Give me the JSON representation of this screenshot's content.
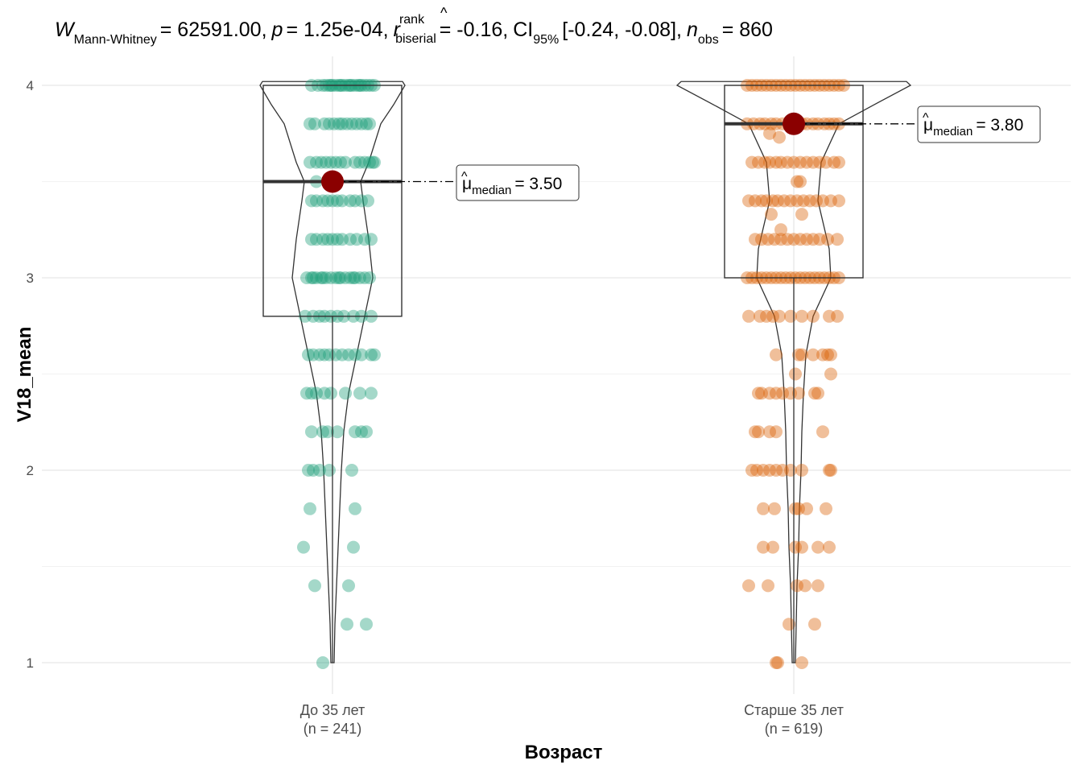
{
  "title": {
    "w_symbol": "W",
    "w_sub": "Mann-Whitney",
    "w_value": "= 62591.00,",
    "p_symbol": "p",
    "p_value": "= 1.25e-04,",
    "r_symbol": "r",
    "r_sup": "rank",
    "r_sub": "biserial",
    "r_value": "= -0.16,",
    "ci_symbol": "CI",
    "ci_sub": "95%",
    "ci_value": "[-0.24, -0.08],",
    "n_symbol": "n",
    "n_sub": "obs",
    "n_value": "= 860"
  },
  "colors": {
    "group1": "#1B9E77",
    "group2": "#D95F02",
    "median_point": "#8B0000",
    "grid": "#ebebeb"
  },
  "chart_data": {
    "type": "violin-box-scatter",
    "xlabel": "Возраст",
    "ylabel": "V18_mean",
    "ylim": [
      0.92,
      4.2
    ],
    "y_ticks": [
      1,
      2,
      3,
      4
    ],
    "categories": [
      "До 35 лет",
      "Старше 35 лет"
    ],
    "n_labels": [
      "(n = 241)",
      "(n = 619)"
    ],
    "groups": [
      {
        "name": "До 35 лет",
        "n": 241,
        "median": 3.5,
        "q1": 2.8,
        "q3": 4.0,
        "whisker_low": 1.0,
        "whisker_high": 4.0,
        "median_label": "= 3.50",
        "points": [
          [
            4.0,
            -26
          ],
          [
            4.0,
            -18
          ],
          [
            4.0,
            -12
          ],
          [
            4.0,
            -8
          ],
          [
            4.0,
            -4
          ],
          [
            4.0,
            0
          ],
          [
            4.0,
            4
          ],
          [
            4.0,
            8
          ],
          [
            4.0,
            12
          ],
          [
            4.0,
            16
          ],
          [
            4.0,
            20
          ],
          [
            4.0,
            24
          ],
          [
            4.0,
            28
          ],
          [
            4.0,
            32
          ],
          [
            4.0,
            36
          ],
          [
            4.0,
            40
          ],
          [
            4.0,
            44
          ],
          [
            4.0,
            48
          ],
          [
            4.0,
            52
          ],
          [
            4.0,
            -2
          ],
          [
            4.0,
            10
          ],
          [
            4.0,
            22
          ],
          [
            4.0,
            34
          ],
          [
            3.8,
            -28
          ],
          [
            3.8,
            -22
          ],
          [
            3.8,
            -10
          ],
          [
            3.8,
            -4
          ],
          [
            3.8,
            2
          ],
          [
            3.8,
            8
          ],
          [
            3.8,
            12
          ],
          [
            3.8,
            18
          ],
          [
            3.8,
            24
          ],
          [
            3.8,
            30
          ],
          [
            3.8,
            36
          ],
          [
            3.8,
            42
          ],
          [
            3.8,
            46
          ],
          [
            3.6,
            -28
          ],
          [
            3.6,
            -20
          ],
          [
            3.6,
            -14
          ],
          [
            3.6,
            -8
          ],
          [
            3.6,
            -2
          ],
          [
            3.6,
            4
          ],
          [
            3.6,
            10
          ],
          [
            3.6,
            16
          ],
          [
            3.6,
            28
          ],
          [
            3.6,
            34
          ],
          [
            3.6,
            40
          ],
          [
            3.6,
            46
          ],
          [
            3.6,
            50
          ],
          [
            3.6,
            52
          ],
          [
            3.5,
            -20
          ],
          [
            3.4,
            -26
          ],
          [
            3.4,
            -20
          ],
          [
            3.4,
            -12
          ],
          [
            3.4,
            -6
          ],
          [
            3.4,
            0
          ],
          [
            3.4,
            6
          ],
          [
            3.4,
            12
          ],
          [
            3.4,
            22
          ],
          [
            3.4,
            28
          ],
          [
            3.4,
            36
          ],
          [
            3.4,
            44
          ],
          [
            3.2,
            -26
          ],
          [
            3.2,
            -20
          ],
          [
            3.2,
            -12
          ],
          [
            3.2,
            -6
          ],
          [
            3.2,
            0
          ],
          [
            3.2,
            6
          ],
          [
            3.2,
            12
          ],
          [
            3.2,
            22
          ],
          [
            3.2,
            30
          ],
          [
            3.2,
            40
          ],
          [
            3.2,
            48
          ],
          [
            3.0,
            -32
          ],
          [
            3.0,
            -26
          ],
          [
            3.0,
            -20
          ],
          [
            3.0,
            -14
          ],
          [
            3.0,
            -8
          ],
          [
            3.0,
            -2
          ],
          [
            3.0,
            4
          ],
          [
            3.0,
            10
          ],
          [
            3.0,
            16
          ],
          [
            3.0,
            22
          ],
          [
            3.0,
            28
          ],
          [
            3.0,
            34
          ],
          [
            3.0,
            40
          ],
          [
            3.0,
            46
          ],
          [
            3.0,
            -24
          ],
          [
            3.0,
            -12
          ],
          [
            3.0,
            8
          ],
          [
            3.0,
            26
          ],
          [
            2.8,
            -34
          ],
          [
            2.8,
            -24
          ],
          [
            2.8,
            -16
          ],
          [
            2.8,
            -10
          ],
          [
            2.8,
            -2
          ],
          [
            2.8,
            6
          ],
          [
            2.8,
            14
          ],
          [
            2.8,
            26
          ],
          [
            2.8,
            36
          ],
          [
            2.8,
            48
          ],
          [
            2.6,
            -30
          ],
          [
            2.6,
            -24
          ],
          [
            2.6,
            -16
          ],
          [
            2.6,
            -10
          ],
          [
            2.6,
            -4
          ],
          [
            2.6,
            4
          ],
          [
            2.6,
            12
          ],
          [
            2.6,
            20
          ],
          [
            2.6,
            28
          ],
          [
            2.6,
            36
          ],
          [
            2.6,
            48
          ],
          [
            2.6,
            52
          ],
          [
            2.4,
            -32
          ],
          [
            2.4,
            -26
          ],
          [
            2.4,
            -20
          ],
          [
            2.4,
            -10
          ],
          [
            2.4,
            -2
          ],
          [
            2.4,
            16
          ],
          [
            2.4,
            34
          ],
          [
            2.4,
            48
          ],
          [
            2.2,
            -26
          ],
          [
            2.2,
            -12
          ],
          [
            2.2,
            -6
          ],
          [
            2.2,
            6
          ],
          [
            2.2,
            28
          ],
          [
            2.2,
            36
          ],
          [
            2.2,
            42
          ],
          [
            2.0,
            -30
          ],
          [
            2.0,
            -24
          ],
          [
            2.0,
            -16
          ],
          [
            2.0,
            -4
          ],
          [
            2.0,
            24
          ],
          [
            1.8,
            -28
          ],
          [
            1.8,
            28
          ],
          [
            1.6,
            -36
          ],
          [
            1.6,
            26
          ],
          [
            1.4,
            -22
          ],
          [
            1.4,
            20
          ],
          [
            1.2,
            18
          ],
          [
            1.2,
            42
          ],
          [
            1.0,
            -12
          ]
        ]
      },
      {
        "name": "Старше 35 лет",
        "n": 619,
        "median": 3.8,
        "q1": 3.0,
        "q3": 4.0,
        "whisker_low": 1.0,
        "whisker_high": 4.0,
        "median_label": "= 3.80",
        "points": [
          [
            4.0,
            -58
          ],
          [
            4.0,
            -52
          ],
          [
            4.0,
            -46
          ],
          [
            4.0,
            -40
          ],
          [
            4.0,
            -34
          ],
          [
            4.0,
            -28
          ],
          [
            4.0,
            -22
          ],
          [
            4.0,
            -16
          ],
          [
            4.0,
            -10
          ],
          [
            4.0,
            -4
          ],
          [
            4.0,
            2
          ],
          [
            4.0,
            8
          ],
          [
            4.0,
            14
          ],
          [
            4.0,
            20
          ],
          [
            4.0,
            26
          ],
          [
            4.0,
            32
          ],
          [
            4.0,
            38
          ],
          [
            4.0,
            44
          ],
          [
            4.0,
            50
          ],
          [
            4.0,
            56
          ],
          [
            4.0,
            62
          ],
          [
            3.8,
            -58
          ],
          [
            3.8,
            -50
          ],
          [
            3.8,
            -42
          ],
          [
            3.8,
            -36
          ],
          [
            3.8,
            -28
          ],
          [
            3.8,
            -22
          ],
          [
            3.8,
            -14
          ],
          [
            3.8,
            -6
          ],
          [
            3.8,
            2
          ],
          [
            3.8,
            10
          ],
          [
            3.8,
            16
          ],
          [
            3.8,
            24
          ],
          [
            3.8,
            30
          ],
          [
            3.8,
            38
          ],
          [
            3.8,
            44
          ],
          [
            3.8,
            50
          ],
          [
            3.8,
            56
          ],
          [
            3.75,
            -30
          ],
          [
            3.73,
            -18
          ],
          [
            3.6,
            -52
          ],
          [
            3.6,
            -44
          ],
          [
            3.6,
            -36
          ],
          [
            3.6,
            -30
          ],
          [
            3.6,
            -22
          ],
          [
            3.6,
            -16
          ],
          [
            3.6,
            -8
          ],
          [
            3.6,
            0
          ],
          [
            3.6,
            8
          ],
          [
            3.6,
            16
          ],
          [
            3.6,
            24
          ],
          [
            3.6,
            32
          ],
          [
            3.6,
            40
          ],
          [
            3.6,
            50
          ],
          [
            3.6,
            56
          ],
          [
            3.5,
            8
          ],
          [
            3.5,
            4
          ],
          [
            3.4,
            -56
          ],
          [
            3.4,
            -48
          ],
          [
            3.4,
            -40
          ],
          [
            3.4,
            -34
          ],
          [
            3.4,
            -26
          ],
          [
            3.4,
            -20
          ],
          [
            3.4,
            -12
          ],
          [
            3.4,
            -4
          ],
          [
            3.4,
            4
          ],
          [
            3.4,
            12
          ],
          [
            3.4,
            20
          ],
          [
            3.4,
            28
          ],
          [
            3.4,
            36
          ],
          [
            3.4,
            46
          ],
          [
            3.4,
            56
          ],
          [
            3.33,
            -28
          ],
          [
            3.33,
            10
          ],
          [
            3.25,
            -16
          ],
          [
            3.2,
            -48
          ],
          [
            3.2,
            -40
          ],
          [
            3.2,
            -32
          ],
          [
            3.2,
            -24
          ],
          [
            3.2,
            -16
          ],
          [
            3.2,
            -8
          ],
          [
            3.2,
            0
          ],
          [
            3.2,
            8
          ],
          [
            3.2,
            16
          ],
          [
            3.2,
            24
          ],
          [
            3.2,
            32
          ],
          [
            3.2,
            42
          ],
          [
            3.2,
            54
          ],
          [
            3.0,
            -58
          ],
          [
            3.0,
            -52
          ],
          [
            3.0,
            -46
          ],
          [
            3.0,
            -40
          ],
          [
            3.0,
            -34
          ],
          [
            3.0,
            -28
          ],
          [
            3.0,
            -22
          ],
          [
            3.0,
            -16
          ],
          [
            3.0,
            -10
          ],
          [
            3.0,
            -4
          ],
          [
            3.0,
            2
          ],
          [
            3.0,
            8
          ],
          [
            3.0,
            14
          ],
          [
            3.0,
            20
          ],
          [
            3.0,
            26
          ],
          [
            3.0,
            32
          ],
          [
            3.0,
            38
          ],
          [
            3.0,
            44
          ],
          [
            3.0,
            50
          ],
          [
            3.0,
            56
          ],
          [
            2.8,
            -56
          ],
          [
            2.8,
            -42
          ],
          [
            2.8,
            -34
          ],
          [
            2.8,
            -26
          ],
          [
            2.8,
            -18
          ],
          [
            2.8,
            -4
          ],
          [
            2.8,
            10
          ],
          [
            2.8,
            24
          ],
          [
            2.8,
            44
          ],
          [
            2.8,
            54
          ],
          [
            2.6,
            -22
          ],
          [
            2.6,
            6
          ],
          [
            2.6,
            10
          ],
          [
            2.6,
            24
          ],
          [
            2.6,
            36
          ],
          [
            2.6,
            42
          ],
          [
            2.6,
            46
          ],
          [
            2.5,
            2
          ],
          [
            2.5,
            46
          ],
          [
            2.4,
            -44
          ],
          [
            2.4,
            -40
          ],
          [
            2.4,
            -30
          ],
          [
            2.4,
            -22
          ],
          [
            2.4,
            -14
          ],
          [
            2.4,
            -4
          ],
          [
            2.4,
            6
          ],
          [
            2.4,
            26
          ],
          [
            2.4,
            30
          ],
          [
            2.2,
            -48
          ],
          [
            2.2,
            -44
          ],
          [
            2.2,
            -30
          ],
          [
            2.2,
            -22
          ],
          [
            2.2,
            36
          ],
          [
            2.0,
            -52
          ],
          [
            2.0,
            -46
          ],
          [
            2.0,
            -38
          ],
          [
            2.0,
            -30
          ],
          [
            2.0,
            -22
          ],
          [
            2.0,
            -14
          ],
          [
            2.0,
            -4
          ],
          [
            2.0,
            10
          ],
          [
            2.0,
            44
          ],
          [
            2.0,
            46
          ],
          [
            1.8,
            -38
          ],
          [
            1.8,
            -24
          ],
          [
            1.8,
            2
          ],
          [
            1.8,
            6
          ],
          [
            1.8,
            16
          ],
          [
            1.8,
            40
          ],
          [
            1.6,
            -38
          ],
          [
            1.6,
            -26
          ],
          [
            1.6,
            2
          ],
          [
            1.6,
            10
          ],
          [
            1.6,
            30
          ],
          [
            1.6,
            44
          ],
          [
            1.4,
            -56
          ],
          [
            1.4,
            -32
          ],
          [
            1.4,
            4
          ],
          [
            1.4,
            14
          ],
          [
            1.4,
            30
          ],
          [
            1.2,
            -6
          ],
          [
            1.2,
            26
          ],
          [
            1.0,
            -22
          ],
          [
            1.0,
            -20
          ],
          [
            1.0,
            10
          ]
        ]
      }
    ]
  }
}
